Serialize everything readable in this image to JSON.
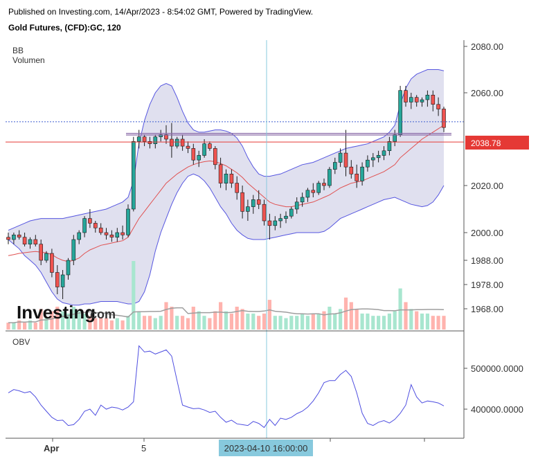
{
  "header": {
    "published": "Published on Investing.com, 14/Apr/2023 - 8:54:02 GMT, Powered by TradingView.",
    "instrument": "Gold Futures, (CFD):GC, 120"
  },
  "legend": {
    "bb": "BB",
    "volume": "Volumen",
    "obv": "OBV"
  },
  "logo": {
    "brand": "Investing",
    "suffix": ".com"
  },
  "colors": {
    "up": "#26a69a",
    "down": "#ef5350",
    "band_fill": "#d6d6ea",
    "band_line": "#5555e0",
    "basis": "#e05050",
    "obv": "#4d4de0",
    "hline": "#e53935",
    "purple": "#8a6aa8",
    "crosshair": "#87c9dd",
    "dotted": "#3a5bd0",
    "vol_up": "#a8e6cf",
    "vol_down": "#ffb3ae",
    "vol_ma": "#9e9e9e"
  },
  "chart_data": [
    {
      "type": "candlestick",
      "yticks": [
        "2080.00",
        "2060.00",
        "2020.00",
        "2000.00",
        "1988.00",
        "1978.00",
        "1968.00"
      ],
      "ytick_values": [
        2080,
        2060,
        2020,
        2000,
        1988,
        1978,
        1968
      ],
      "ylim": [
        1961,
        2083
      ],
      "price_label": "2038.78",
      "price_value": 2038.78,
      "dotted_level": 2047.5,
      "resistance_levels": [
        2042.5,
        2041.8
      ],
      "ohlc": [
        [
          1998,
          2000,
          1995,
          1997
        ],
        [
          1997,
          2000,
          1995,
          1999
        ],
        [
          1999,
          2001,
          1997,
          1998
        ],
        [
          1998,
          2000,
          1994,
          1995
        ],
        [
          1995,
          1998,
          1993,
          1997
        ],
        [
          1997,
          1999,
          1994,
          1995
        ],
        [
          1995,
          1997,
          1986,
          1988
        ],
        [
          1988,
          1992,
          1987,
          1991
        ],
        [
          1991,
          1993,
          1981,
          1983
        ],
        [
          1983,
          1986,
          1974,
          1977
        ],
        [
          1977,
          1984,
          1972,
          1982
        ],
        [
          1982,
          1989,
          1980,
          1988
        ],
        [
          1988,
          1999,
          1986,
          1997
        ],
        [
          1997,
          2001,
          1995,
          2000
        ],
        [
          2000,
          2007,
          1998,
          2006
        ],
        [
          2006,
          2010,
          2002,
          2004
        ],
        [
          2004,
          2005,
          2000,
          2002
        ],
        [
          2002,
          2004,
          1999,
          2000
        ],
        [
          2000,
          2002,
          1997,
          1999
        ],
        [
          1999,
          2001,
          1996,
          1998
        ],
        [
          1998,
          2002,
          1996,
          2000
        ],
        [
          2000,
          2003,
          1997,
          1999
        ],
        [
          1999,
          2012,
          1998,
          2010
        ],
        [
          2010,
          2041,
          2009,
          2039
        ],
        [
          2039,
          2044,
          2036,
          2041
        ],
        [
          2041,
          2042,
          2037,
          2039
        ],
        [
          2039,
          2041,
          2036,
          2038
        ],
        [
          2038,
          2042,
          2036,
          2041
        ],
        [
          2041,
          2044,
          2039,
          2042
        ],
        [
          2042,
          2046,
          2038,
          2040
        ],
        [
          2040,
          2047,
          2032,
          2037
        ],
        [
          2037,
          2041,
          2036,
          2040
        ],
        [
          2040,
          2042,
          2035,
          2037
        ],
        [
          2037,
          2039,
          2034,
          2036
        ],
        [
          2036,
          2038,
          2029,
          2031
        ],
        [
          2031,
          2035,
          2028,
          2033
        ],
        [
          2033,
          2040,
          2032,
          2038
        ],
        [
          2038,
          2039,
          2035,
          2036
        ],
        [
          2036,
          2037,
          2027,
          2029
        ],
        [
          2029,
          2032,
          2019,
          2021
        ],
        [
          2021,
          2027,
          2018,
          2025
        ],
        [
          2025,
          2027,
          2019,
          2021
        ],
        [
          2021,
          2024,
          2014,
          2017
        ],
        [
          2017,
          2020,
          2006,
          2009
        ],
        [
          2009,
          2014,
          2005,
          2011
        ],
        [
          2011,
          2016,
          2008,
          2014
        ],
        [
          2014,
          2018,
          2010,
          2012
        ],
        [
          2012,
          2014,
          2003,
          2005
        ],
        [
          2005,
          2008,
          1997,
          2003
        ],
        [
          2003,
          2007,
          2001,
          2005
        ],
        [
          2005,
          2008,
          2002,
          2006
        ],
        [
          2006,
          2009,
          2004,
          2007
        ],
        [
          2007,
          2011,
          2006,
          2010
        ],
        [
          2010,
          2015,
          2008,
          2013
        ],
        [
          2013,
          2017,
          2011,
          2015
        ],
        [
          2015,
          2019,
          2013,
          2018
        ],
        [
          2018,
          2021,
          2015,
          2017
        ],
        [
          2017,
          2022,
          2016,
          2021
        ],
        [
          2021,
          2023,
          2018,
          2020
        ],
        [
          2020,
          2028,
          2019,
          2027
        ],
        [
          2027,
          2032,
          2025,
          2030
        ],
        [
          2030,
          2036,
          2028,
          2034
        ],
        [
          2034,
          2044,
          2024,
          2028
        ],
        [
          2028,
          2031,
          2023,
          2025
        ],
        [
          2025,
          2029,
          2019,
          2022
        ],
        [
          2022,
          2030,
          2020,
          2028
        ],
        [
          2028,
          2033,
          2026,
          2031
        ],
        [
          2031,
          2034,
          2028,
          2032
        ],
        [
          2032,
          2035,
          2030,
          2033
        ],
        [
          2033,
          2037,
          2031,
          2035
        ],
        [
          2035,
          2041,
          2033,
          2039
        ],
        [
          2039,
          2044,
          2037,
          2042
        ],
        [
          2042,
          2063,
          2041,
          2061
        ],
        [
          2061,
          2063,
          2054,
          2056
        ],
        [
          2056,
          2060,
          2053,
          2058
        ],
        [
          2058,
          2059,
          2054,
          2056
        ],
        [
          2056,
          2058,
          2054,
          2057
        ],
        [
          2057,
          2061,
          2054,
          2059
        ],
        [
          2059,
          2061,
          2052,
          2055
        ],
        [
          2055,
          2058,
          2050,
          2053
        ],
        [
          2053,
          2054,
          2043,
          2045
        ]
      ],
      "basis": [
        1990,
        1990.5,
        1991,
        1991.3,
        1991.6,
        1991.8,
        1991.5,
        1991.2,
        1990.5,
        1989,
        1988,
        1987.5,
        1988,
        1989,
        1991,
        1992.5,
        1993.5,
        1994.5,
        1995,
        1995.5,
        1996,
        1996.5,
        1998,
        2002,
        2006,
        2009,
        2012,
        2015,
        2018,
        2021,
        2023,
        2025,
        2026.5,
        2028,
        2029,
        2029.8,
        2030.3,
        2030.6,
        2030.3,
        2029.5,
        2028.5,
        2027,
        2025.5,
        2023.5,
        2021,
        2019,
        2017,
        2015,
        2013,
        2012,
        2011.5,
        2011,
        2011,
        2011.5,
        2012,
        2012.5,
        2013,
        2014,
        2015,
        2016,
        2017.5,
        2019,
        2020,
        2021,
        2021.5,
        2022,
        2023,
        2024,
        2025,
        2026,
        2027.5,
        2029,
        2032,
        2034,
        2036,
        2038,
        2040,
        2041.5,
        2043,
        2044.5,
        2046
      ],
      "upper": [
        2001,
        2002,
        2003,
        2004,
        2005,
        2005.5,
        2006,
        2006,
        2006,
        2006,
        2006,
        2006.5,
        2007,
        2007.5,
        2008,
        2008.5,
        2009,
        2009.5,
        2010,
        2011,
        2012,
        2013,
        2015,
        2022,
        2038,
        2048,
        2055,
        2060,
        2063,
        2064,
        2063,
        2058,
        2052,
        2047,
        2044,
        2043,
        2043,
        2043.5,
        2044,
        2044,
        2043.5,
        2042.5,
        2040.5,
        2037,
        2032,
        2028,
        2025,
        2024,
        2024,
        2024.5,
        2025,
        2026,
        2027,
        2028,
        2029,
        2029.5,
        2030,
        2031,
        2032,
        2033,
        2034,
        2035,
        2036,
        2036.5,
        2037,
        2037.5,
        2038,
        2039,
        2040,
        2041,
        2043,
        2046,
        2055,
        2062,
        2066,
        2068,
        2069,
        2070,
        2070,
        2070,
        2069.5
      ],
      "lower": [
        1997,
        1995,
        1993,
        1990,
        1988,
        1986,
        1983,
        1979,
        1975,
        1972,
        1970.5,
        1970,
        1969.5,
        1969.5,
        1970,
        1970,
        1970.5,
        1971,
        1971,
        1971,
        1971,
        1970.5,
        1970,
        1970,
        1971,
        1975,
        1982,
        1992,
        2000,
        2006,
        2012,
        2017,
        2021,
        2024,
        2025,
        2024,
        2022,
        2019,
        2015,
        2011,
        2008,
        2004,
        2001,
        1999,
        1997.5,
        1997,
        1997,
        1997,
        1997.5,
        1998,
        1998.5,
        1999,
        1999.5,
        2000,
        2000,
        2000,
        2000,
        2000,
        2000.5,
        2002,
        2004,
        2006,
        2007,
        2008,
        2009,
        2010,
        2011,
        2012,
        2013,
        2014,
        2014.5,
        2015,
        2014,
        2013,
        2012,
        2011.5,
        2011,
        2011.5,
        2013,
        2016,
        2020
      ]
    },
    {
      "type": "bar",
      "series": [
        {
          "values": [
            3,
            3,
            4,
            3,
            4,
            3,
            9,
            5,
            8,
            10,
            8,
            7,
            10,
            8,
            7,
            6,
            5,
            5,
            5,
            4,
            5,
            4,
            6,
            30,
            8,
            6,
            6,
            5,
            6,
            12,
            10,
            6,
            6,
            5,
            10,
            8,
            6,
            5,
            8,
            12,
            8,
            7,
            10,
            9,
            7,
            7,
            6,
            7,
            13,
            6,
            6,
            5,
            6,
            6,
            7,
            6,
            7,
            7,
            8,
            10,
            7,
            9,
            14,
            12,
            9,
            7,
            7,
            6,
            6,
            6,
            7,
            8,
            18,
            12,
            9,
            8,
            7,
            7,
            6,
            6,
            6
          ]
        }
      ]
    },
    {
      "type": "line",
      "yticks": [
        "500000.0000",
        "400000.0000"
      ],
      "ytick_values": [
        500000,
        400000
      ],
      "ylim": [
        330000,
        585000
      ],
      "series": [
        {
          "values": [
            440000,
            448000,
            445000,
            440000,
            443000,
            430000,
            410000,
            395000,
            380000,
            372000,
            373000,
            360000,
            362000,
            375000,
            395000,
            400000,
            385000,
            410000,
            400000,
            405000,
            403000,
            398000,
            405000,
            418000,
            555000,
            540000,
            542000,
            535000,
            540000,
            545000,
            530000,
            470000,
            410000,
            405000,
            401000,
            402000,
            398000,
            392000,
            395000,
            380000,
            368000,
            373000,
            364000,
            362000,
            360000,
            370000,
            365000,
            355000,
            375000,
            360000,
            378000,
            375000,
            380000,
            389000,
            395000,
            405000,
            420000,
            440000,
            465000,
            470000,
            470000,
            485000,
            495000,
            480000,
            440000,
            390000,
            365000,
            360000,
            368000,
            372000,
            366000,
            375000,
            390000,
            410000,
            460000,
            430000,
            415000,
            420000,
            418000,
            415000,
            408000
          ]
        }
      ]
    }
  ],
  "xaxis": {
    "labels": [
      "Apr",
      "5"
    ],
    "crosshair_label": "2023-04-10 16:00:00"
  }
}
